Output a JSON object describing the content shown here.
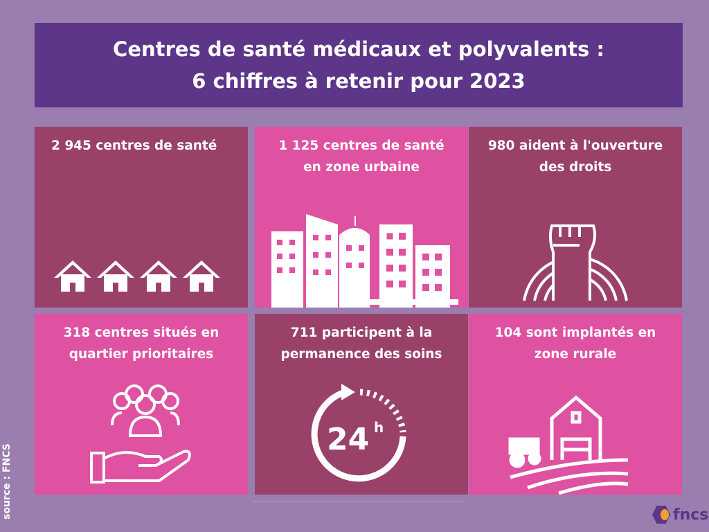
{
  "title": {
    "line1": "Centres de santé médicaux et polyvalents :",
    "line2": "6 chiffres à retenir pour 2023"
  },
  "tiles": [
    {
      "line1": "2 945 centres de santé",
      "line2": "",
      "icon": "houses-icon"
    },
    {
      "line1": "1 125 centres de santé",
      "line2": "en zone urbaine",
      "icon": "buildings-icon"
    },
    {
      "line1": "980 aident à l'ouverture",
      "line2": "des droits",
      "icon": "raised-fist-icon"
    },
    {
      "line1": "318 centres situés en",
      "line2": "quartier prioritaires",
      "icon": "hand-people-icon"
    },
    {
      "line1": "711 participent à la",
      "line2": "permanence des soins",
      "icon": "clock-24h-icon",
      "icon_text": "24",
      "icon_sup": "h"
    },
    {
      "line1": "104 sont implantés en",
      "line2": "zone rurale",
      "icon": "farm-icon"
    }
  ],
  "source": "source : FNCS",
  "logo": "fncs",
  "colors": {
    "background": "#9a7eb0",
    "title": "#5d3589",
    "dark": "#9a4169",
    "pink": "#df51a1"
  }
}
